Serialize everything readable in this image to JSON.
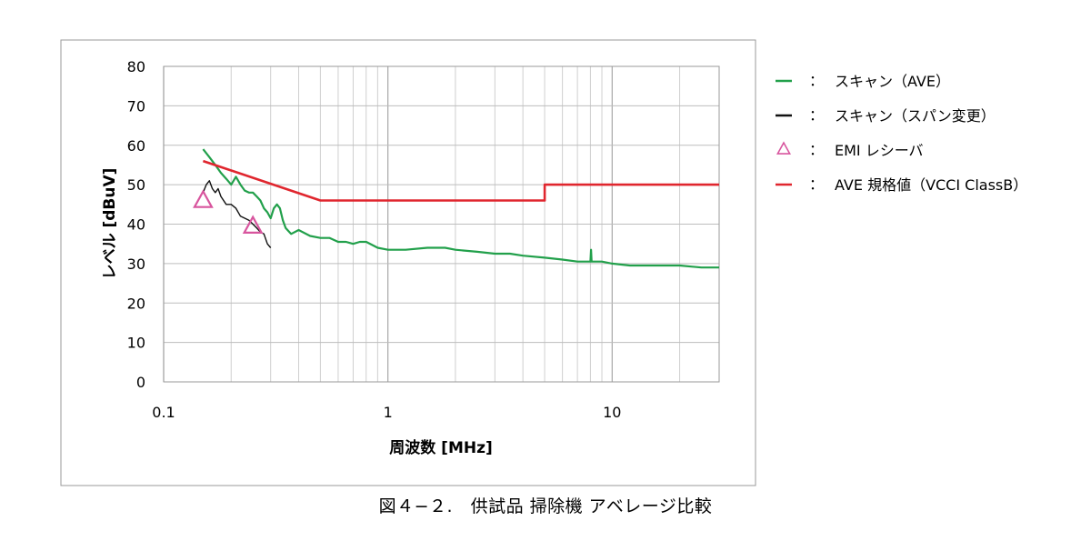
{
  "chart_data": {
    "type": "line",
    "xscale": "log",
    "xlim": [
      0.1,
      30
    ],
    "ylim": [
      0,
      80
    ],
    "xlabel": "周波数 [MHz]",
    "ylabel": "レベル [dBuV]",
    "x_ticks": [
      {
        "value": 0.1,
        "label": "0.1"
      },
      {
        "value": 1,
        "label": "1"
      },
      {
        "value": 10,
        "label": "10"
      }
    ],
    "y_ticks": [
      0,
      10,
      20,
      30,
      40,
      50,
      60,
      70,
      80
    ],
    "grid": true,
    "legend_position": "right",
    "series": [
      {
        "key": "scan_ave",
        "name": "スキャン（AVE）",
        "color": "#22a04b",
        "style": "line",
        "x": [
          0.15,
          0.16,
          0.17,
          0.18,
          0.19,
          0.2,
          0.21,
          0.22,
          0.23,
          0.24,
          0.25,
          0.26,
          0.27,
          0.28,
          0.29,
          0.3,
          0.31,
          0.32,
          0.33,
          0.34,
          0.35,
          0.37,
          0.4,
          0.45,
          0.5,
          0.55,
          0.6,
          0.65,
          0.7,
          0.75,
          0.8,
          0.9,
          1,
          1.2,
          1.5,
          1.8,
          2,
          2.5,
          3,
          3.5,
          4,
          5,
          6,
          7,
          8,
          8.05,
          8.1,
          9,
          10,
          12,
          15,
          20,
          25,
          30
        ],
        "y": [
          59,
          57,
          55,
          53,
          51.5,
          50,
          52,
          50,
          48.5,
          48,
          48,
          47,
          46,
          44,
          43,
          41.5,
          44,
          45,
          44,
          41,
          39,
          37.5,
          38.5,
          37,
          36.5,
          36.5,
          35.5,
          35.5,
          35,
          35.5,
          35.5,
          34,
          33.5,
          33.5,
          34,
          34,
          33.5,
          33,
          32.5,
          32.5,
          32,
          31.5,
          31,
          30.5,
          30.5,
          33.5,
          30.5,
          30.5,
          30,
          29.5,
          29.5,
          29.5,
          29,
          29
        ]
      },
      {
        "key": "scan_span",
        "name": "スキャン（スパン変更）",
        "color": "#111111",
        "style": "line",
        "x": [
          0.15,
          0.155,
          0.16,
          0.165,
          0.17,
          0.175,
          0.18,
          0.19,
          0.2,
          0.21,
          0.22,
          0.23,
          0.24,
          0.25,
          0.26,
          0.27,
          0.28,
          0.29,
          0.3
        ],
        "y": [
          48,
          50,
          51,
          49,
          48,
          49,
          47,
          45,
          45,
          44,
          42,
          41.5,
          41,
          40,
          39,
          38,
          37.5,
          35,
          34
        ]
      },
      {
        "key": "emi",
        "name": "EMI レシーバ",
        "color": "#d8559e",
        "style": "marker",
        "x": [
          0.15,
          0.25
        ],
        "y": [
          46,
          39.5
        ]
      },
      {
        "key": "limit",
        "name": "AVE 規格値（VCCI ClassB）",
        "color": "#e0262e",
        "style": "step",
        "x": [
          0.15,
          0.5,
          5,
          5,
          30
        ],
        "y": [
          56,
          46,
          46,
          50,
          50
        ]
      }
    ]
  },
  "legend": {
    "separator": "：",
    "items": [
      {
        "key": "scan_ave",
        "label": "スキャン（AVE）",
        "color": "#22a04b",
        "marker": "line"
      },
      {
        "key": "scan_span",
        "label": "スキャン（スパン変更）",
        "color": "#111111",
        "marker": "line"
      },
      {
        "key": "emi",
        "label": "EMI レシーバ",
        "color": "#d8559e",
        "marker": "triangle"
      },
      {
        "key": "limit",
        "label": "AVE 規格値（VCCI ClassB）",
        "color": "#e0262e",
        "marker": "line"
      }
    ]
  },
  "caption": "図４−２.　供試品 掃除機 アベレージ比較"
}
